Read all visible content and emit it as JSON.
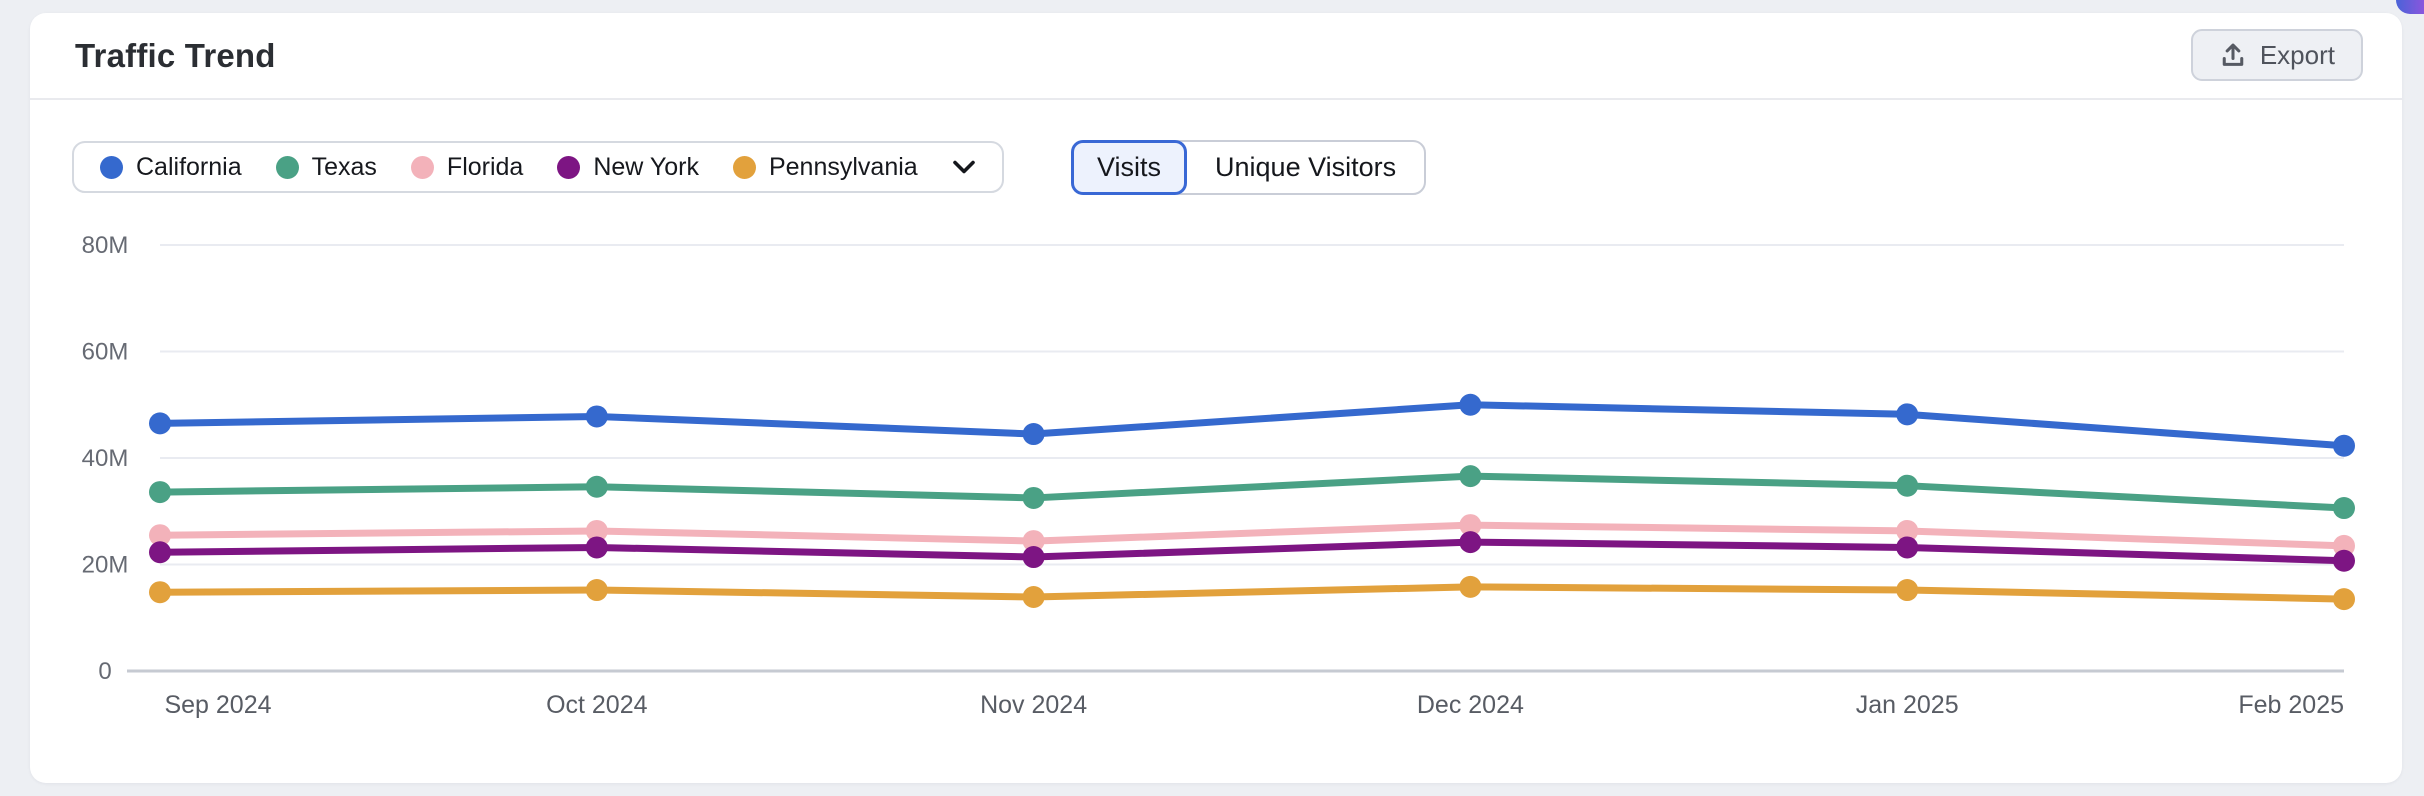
{
  "page": {
    "background": "#edeff3"
  },
  "header": {
    "title": "Traffic Trend",
    "export_label": "Export"
  },
  "legend": {
    "chevron_icon": "chevron-down-icon"
  },
  "metric_toggle": {
    "options": [
      {
        "label": "Visits",
        "selected": true
      },
      {
        "label": "Unique Visitors",
        "selected": false
      }
    ]
  },
  "chart_data": {
    "type": "line",
    "title": "Traffic Trend",
    "x": [
      "Sep 2024",
      "Oct 2024",
      "Nov 2024",
      "Dec 2024",
      "Jan 2025",
      "Feb 2025"
    ],
    "unit": "visits (millions)",
    "ylim": [
      0,
      80
    ],
    "grid": true,
    "legend_position": "top-left",
    "y_ticks": [
      {
        "value": 80,
        "label": "80M"
      },
      {
        "value": 60,
        "label": "60M"
      },
      {
        "value": 40,
        "label": "40M"
      },
      {
        "value": 20,
        "label": "20M"
      },
      {
        "value": 0,
        "label": "0"
      }
    ],
    "series": [
      {
        "name": "California",
        "color": "#3569CE",
        "values": [
          46.5,
          47.8,
          44.5,
          50.0,
          48.2,
          42.3
        ]
      },
      {
        "name": "Texas",
        "color": "#4AA185",
        "values": [
          33.6,
          34.6,
          32.5,
          36.6,
          34.8,
          30.6
        ]
      },
      {
        "name": "Florida",
        "color": "#F3B2BA",
        "values": [
          25.5,
          26.3,
          24.4,
          27.4,
          26.3,
          23.5
        ]
      },
      {
        "name": "New York",
        "color": "#7D1583",
        "values": [
          22.3,
          23.2,
          21.4,
          24.2,
          23.2,
          20.7
        ]
      },
      {
        "name": "Pennsylvania",
        "color": "#E2A13C",
        "values": [
          14.8,
          15.2,
          13.9,
          15.8,
          15.2,
          13.5
        ]
      }
    ]
  }
}
